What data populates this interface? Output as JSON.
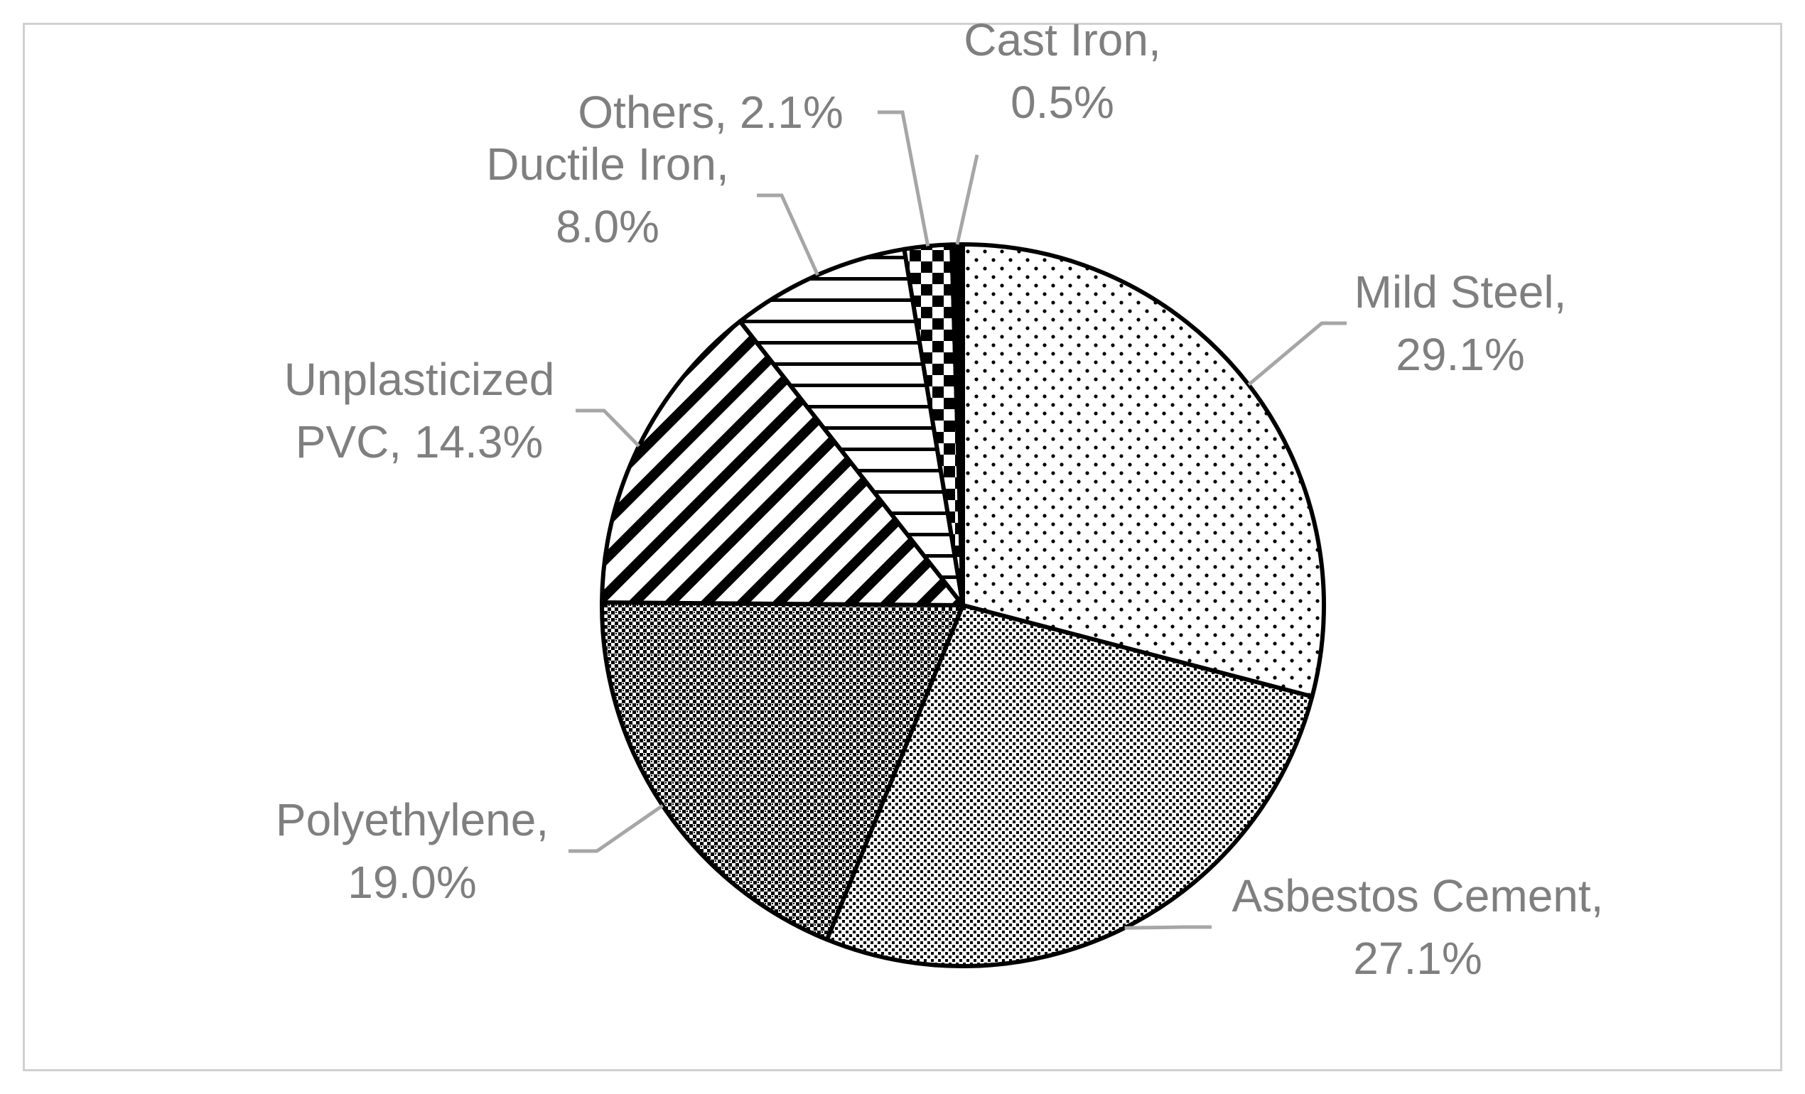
{
  "chart_data": {
    "type": "pie",
    "slices": [
      {
        "key": "mild_steel",
        "label_lines": [
          "Mild Steel,",
          "29.1%"
        ],
        "value": 29.1,
        "pattern": "dots"
      },
      {
        "key": "asbestos_cement",
        "label_lines": [
          "Asbestos Cement,",
          "27.1%"
        ],
        "value": 27.1,
        "pattern": "fine-check"
      },
      {
        "key": "polyethylene",
        "label_lines": [
          "Polyethylene,",
          "19.0%"
        ],
        "value": 19.0,
        "pattern": "fine-check-dark"
      },
      {
        "key": "unplasticized_pvc",
        "label_lines": [
          "Unplasticized",
          "PVC, 14.3%"
        ],
        "value": 14.3,
        "pattern": "diagonal-stripes"
      },
      {
        "key": "ductile_iron",
        "label_lines": [
          "Ductile Iron,",
          "8.0%"
        ],
        "value": 8.0,
        "pattern": "horizontal-stripes"
      },
      {
        "key": "others",
        "label_lines": [
          "Others, 2.1%"
        ],
        "value": 2.1,
        "pattern": "checkerboard"
      },
      {
        "key": "cast_iron",
        "label_lines": [
          "Cast Iron,",
          "0.5%"
        ],
        "value": 0.5,
        "pattern": "solid-black"
      }
    ],
    "start_angle": "12 o'clock",
    "direction": "clockwise",
    "legend": "none",
    "colors": {
      "stroke": "#000000",
      "label": "#7f7f7f",
      "leader": "#a6a6a6",
      "border": "#d0d0d0"
    }
  }
}
